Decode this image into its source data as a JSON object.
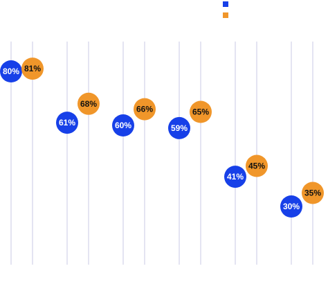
{
  "chart_data": {
    "type": "dot",
    "ylim": [
      0,
      100
    ],
    "series": [
      {
        "color": "#1740e8",
        "label_color": "#ffffff",
        "values": [
          80,
          61,
          60,
          59,
          41,
          30
        ],
        "value_labels": [
          "80%",
          "61%",
          "60%",
          "59%",
          "41%",
          "30%"
        ]
      },
      {
        "color": "#f0962a",
        "label_color": "#111111",
        "values": [
          81,
          68,
          66,
          65,
          45,
          35
        ],
        "value_labels": [
          "81%",
          "68%",
          "66%",
          "65%",
          "45%",
          "35%"
        ]
      }
    ]
  }
}
